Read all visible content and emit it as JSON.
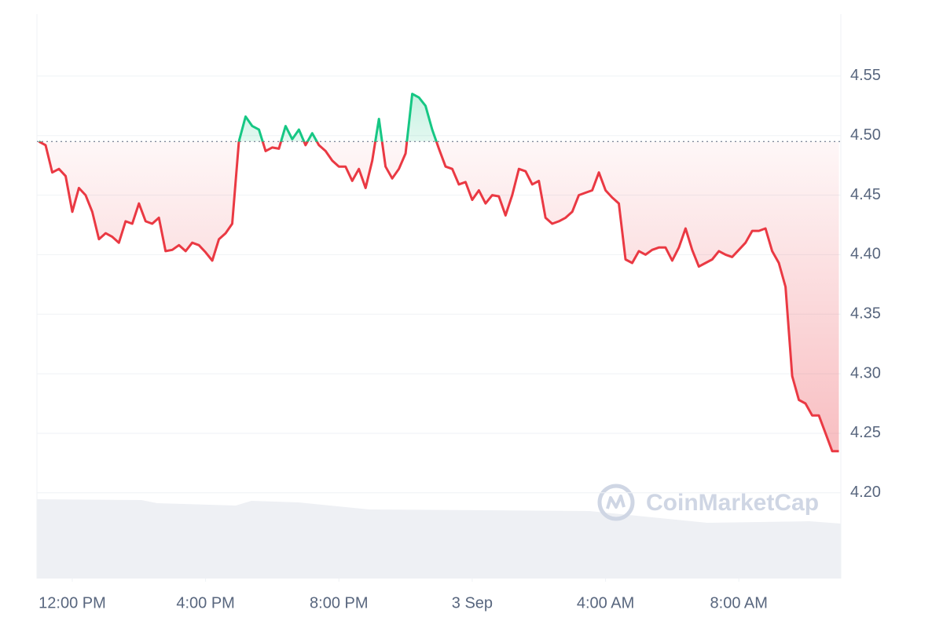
{
  "chart_data": {
    "type": "line",
    "x": [
      -1,
      -0.8,
      -0.6,
      -0.4,
      -0.2,
      0,
      0.2,
      0.4,
      0.6,
      0.8,
      1,
      1.2,
      1.4,
      1.6,
      1.8,
      2,
      2.2,
      2.4,
      2.6,
      2.8,
      3,
      3.2,
      3.4,
      3.6,
      3.8,
      4,
      4.2,
      4.4,
      4.6,
      4.8,
      5,
      5.2,
      5.4,
      5.6,
      5.8,
      6,
      6.2,
      6.4,
      6.6,
      6.8,
      7,
      7.2,
      7.4,
      7.6,
      7.8,
      8,
      8.2,
      8.4,
      8.6,
      8.8,
      9,
      9.2,
      9.4,
      9.6,
      9.8,
      10,
      10.2,
      10.4,
      10.6,
      10.8,
      11,
      11.2,
      11.4,
      11.6,
      11.8,
      12,
      12.2,
      12.4,
      12.6,
      12.8,
      13,
      13.2,
      13.4,
      13.6,
      13.8,
      14,
      14.2,
      14.4,
      14.6,
      14.8,
      15,
      15.2,
      15.4,
      15.6,
      15.8,
      16,
      16.2,
      16.4,
      16.6,
      16.8,
      17,
      17.2,
      17.4,
      17.6,
      17.8,
      18,
      18.2,
      18.4,
      18.6,
      18.8,
      19,
      19.2,
      19.4,
      19.6,
      19.8,
      20,
      20.2,
      20.4,
      20.6,
      20.8,
      21,
      21.2,
      21.4,
      21.6,
      21.8,
      22,
      22.2,
      22.4,
      22.6,
      22.8,
      23
    ],
    "values": [
      4.495,
      4.492,
      4.469,
      4.472,
      4.466,
      4.436,
      4.456,
      4.45,
      4.436,
      4.413,
      4.418,
      4.415,
      4.41,
      4.428,
      4.426,
      4.443,
      4.428,
      4.426,
      4.431,
      4.403,
      4.404,
      4.408,
      4.403,
      4.41,
      4.408,
      4.402,
      4.395,
      4.413,
      4.418,
      4.426,
      4.495,
      4.516,
      4.508,
      4.505,
      4.487,
      4.49,
      4.489,
      4.508,
      4.497,
      4.505,
      4.492,
      4.502,
      4.492,
      4.487,
      4.479,
      4.474,
      4.474,
      4.462,
      4.472,
      4.456,
      4.479,
      4.514,
      4.474,
      4.464,
      4.472,
      4.485,
      4.535,
      4.532,
      4.525,
      4.505,
      4.489,
      4.474,
      4.472,
      4.459,
      4.461,
      4.446,
      4.454,
      4.443,
      4.45,
      4.449,
      4.433,
      4.45,
      4.472,
      4.47,
      4.459,
      4.462,
      4.431,
      4.426,
      4.428,
      4.431,
      4.436,
      4.45,
      4.452,
      4.454,
      4.469,
      4.454,
      4.448,
      4.443,
      4.396,
      4.393,
      4.403,
      4.4,
      4.404,
      4.406,
      4.406,
      4.395,
      4.406,
      4.422,
      4.404,
      4.39,
      4.393,
      4.396,
      4.403,
      4.4,
      4.398,
      4.404,
      4.41,
      4.42,
      4.42,
      4.422,
      4.403,
      4.393,
      4.373,
      4.298,
      4.278,
      4.275,
      4.265,
      4.265,
      4.25,
      4.235,
      4.235
    ],
    "baseline": 4.495,
    "up_color": "#16c784",
    "down_color": "#ea3943",
    "xlim": [
      -1.06,
      23.06
    ],
    "xticks": [
      {
        "value": 0,
        "label": "12:00 PM"
      },
      {
        "value": 4,
        "label": "4:00 PM"
      },
      {
        "value": 8,
        "label": "8:00 PM"
      },
      {
        "value": 12,
        "label": "3 Sep"
      },
      {
        "value": 16,
        "label": "4:00 AM"
      },
      {
        "value": 20,
        "label": "8:00 AM"
      }
    ],
    "ylim": [
      4.128,
      4.602
    ],
    "yticks": [
      {
        "value": 4.2,
        "label": "4.20"
      },
      4.25,
      {
        "value": 4.3,
        "label": "4.30"
      },
      4.35,
      {
        "value": 4.4,
        "label": "4.40"
      },
      4.45,
      {
        "value": 4.5,
        "label": "4.50"
      },
      4.55
    ],
    "grid": true,
    "watermark": "CoinMarketCap"
  }
}
